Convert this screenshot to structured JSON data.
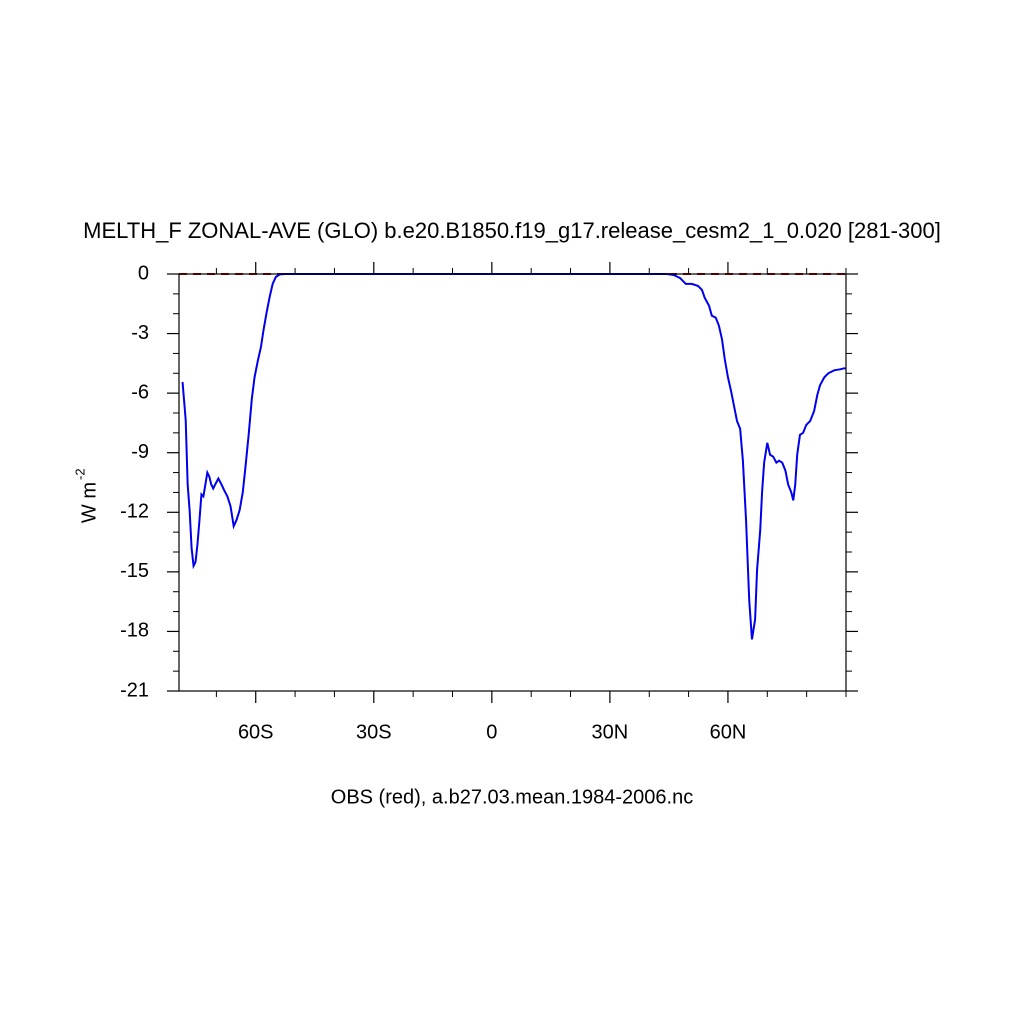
{
  "chart_data": {
    "type": "line",
    "title": "MELTH_F ZONAL-AVE (GLO) b.e20.B1850.f19_g17.release_cesm2_1_0.020 [281-300]",
    "ylabel": "W m",
    "ylabel_exponent": "-2",
    "caption": "OBS (red), a.b27.03.mean.1984-2006.nc",
    "xlim": [
      -79.5,
      90
    ],
    "ylim": [
      -21,
      0
    ],
    "xticks": [
      {
        "value": -60,
        "label": "60S"
      },
      {
        "value": -30,
        "label": "30S"
      },
      0,
      {
        "value": 30,
        "label": "30N"
      },
      {
        "value": 60,
        "label": "60N"
      }
    ],
    "xminorticks": [
      -70,
      -50,
      -40,
      -20,
      -10,
      10,
      20,
      40,
      50,
      70,
      80,
      90
    ],
    "yticks": [
      0,
      -3,
      -6,
      -9,
      -12,
      -15,
      -18,
      -21
    ],
    "yminorticks": [
      -1,
      -2,
      -4,
      -5,
      -7,
      -8,
      -10,
      -11,
      -13,
      -14,
      -16,
      -17,
      -19,
      -20
    ],
    "grid": false,
    "series": [
      {
        "name": "OBS",
        "color": "#cc0000",
        "dashed": true,
        "x": [
          -79.5,
          90
        ],
        "values": [
          0,
          0
        ]
      },
      {
        "name": "b.e20.B1850.f19_g17.release_cesm2_1_0.020",
        "color": "#0000ee",
        "dashed": false,
        "x": [
          -78.6,
          -77.8,
          -77.3,
          -76.8,
          -76.3,
          -75.8,
          -75.3,
          -74.8,
          -74.3,
          -73.8,
          -73.3,
          -72.8,
          -72.3,
          -71.8,
          -71.3,
          -70.8,
          -70.3,
          -69.5,
          -68.7,
          -68.0,
          -67.2,
          -66.4,
          -65.6,
          -64.9,
          -64.1,
          -63.3,
          -62.6,
          -61.8,
          -61.0,
          -60.3,
          -59.5,
          -58.7,
          -58.0,
          -57.2,
          -56.4,
          -55.7,
          -54.9,
          -53.9,
          -52.6,
          44.5,
          46.2,
          47.8,
          49.3,
          50.8,
          52.4,
          53.4,
          54.1,
          55.2,
          55.9,
          56.9,
          57.7,
          58.5,
          59.2,
          60.0,
          60.8,
          61.5,
          62.3,
          63.1,
          63.8,
          64.6,
          65.4,
          66.1,
          66.9,
          67.4,
          68.2,
          68.7,
          69.2,
          70.0,
          70.7,
          71.5,
          72.3,
          73.0,
          73.8,
          74.6,
          75.3,
          76.1,
          76.6,
          77.1,
          77.6,
          78.3,
          79.1,
          79.9,
          80.9,
          81.9,
          82.7,
          83.4,
          84.5,
          85.5,
          87.0,
          88.5,
          89.5,
          90.0
        ],
        "values": [
          -5.44,
          -7.35,
          -10.6,
          -11.9,
          -13.8,
          -14.7,
          -14.5,
          -13.6,
          -12.4,
          -11.1,
          -11.2,
          -10.6,
          -10.0,
          -10.2,
          -10.6,
          -10.8,
          -10.6,
          -10.3,
          -10.6,
          -10.9,
          -11.2,
          -11.7,
          -12.7,
          -12.4,
          -11.9,
          -11.0,
          -9.7,
          -8.1,
          -6.3,
          -5.2,
          -4.4,
          -3.7,
          -2.8,
          -1.9,
          -1.1,
          -0.5,
          -0.15,
          -0.02,
          0,
          0,
          -0.05,
          -0.2,
          -0.5,
          -0.5,
          -0.6,
          -0.8,
          -1.2,
          -1.6,
          -2.1,
          -2.2,
          -2.6,
          -3.3,
          -4.3,
          -5.2,
          -5.9,
          -6.6,
          -7.4,
          -7.8,
          -9.4,
          -12.4,
          -16.4,
          -18.4,
          -17.4,
          -14.9,
          -12.9,
          -10.9,
          -9.5,
          -8.5,
          -9.1,
          -9.2,
          -9.5,
          -9.4,
          -9.5,
          -9.9,
          -10.6,
          -11.0,
          -11.4,
          -10.6,
          -9.1,
          -8.1,
          -8.0,
          -7.6,
          -7.4,
          -6.9,
          -6.1,
          -5.6,
          -5.2,
          -5.0,
          -4.85,
          -4.8,
          -4.75,
          -4.75
        ]
      }
    ]
  }
}
